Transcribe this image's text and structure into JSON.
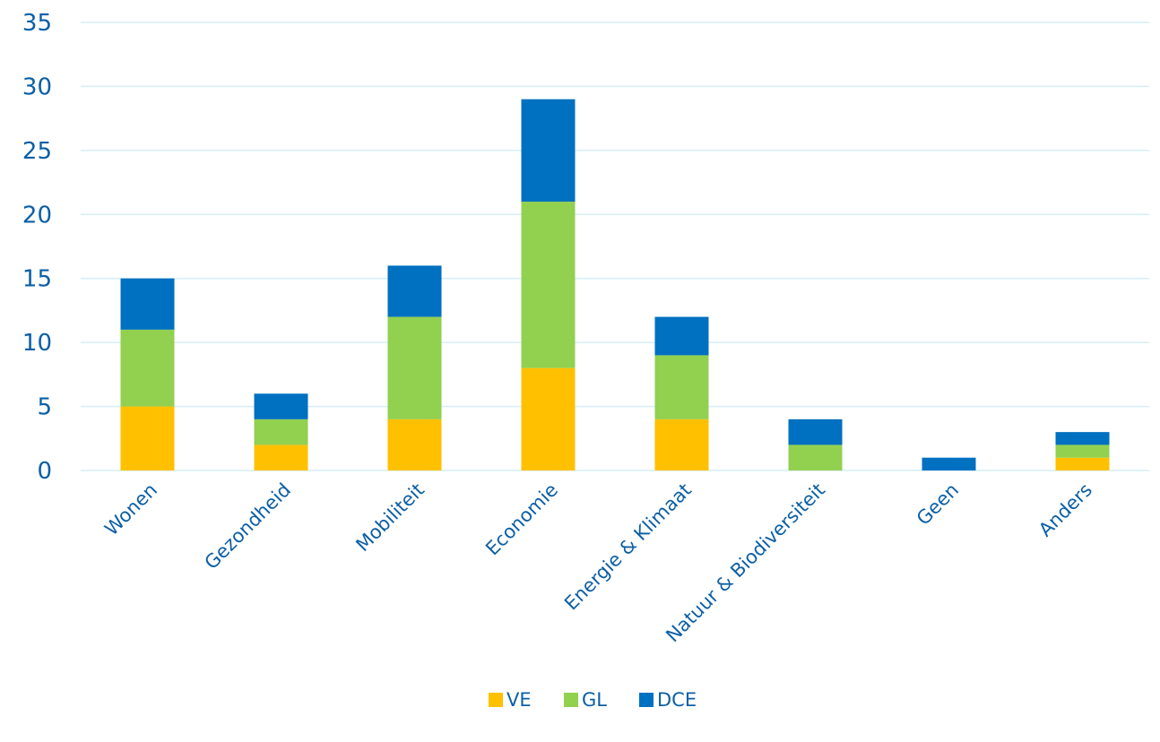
{
  "chart_data": {
    "type": "bar",
    "stacked": true,
    "title": "",
    "xlabel": "",
    "ylabel": "",
    "categories": [
      "Wonen",
      "Gezondheid",
      "Mobiliteit",
      "Economie",
      "Energie & Klimaat",
      "Natuur & Biodiversiteit",
      "Geen",
      "Anders"
    ],
    "series": [
      {
        "name": "VE",
        "color": "#FFC000",
        "values": [
          5,
          2,
          4,
          8,
          4,
          0,
          0,
          1
        ]
      },
      {
        "name": "GL",
        "color": "#92D050",
        "values": [
          6,
          2,
          8,
          13,
          5,
          2,
          0,
          1
        ]
      },
      {
        "name": "DCE",
        "color": "#0070C0",
        "values": [
          4,
          2,
          4,
          8,
          3,
          2,
          1,
          1
        ]
      }
    ],
    "ylim": [
      0,
      35
    ],
    "yticks": [
      0,
      5,
      10,
      15,
      20,
      25,
      30,
      35
    ],
    "grid": true,
    "legend_position": "bottom",
    "text_color": "#0B5FA5",
    "grid_color": "#D6EEF8"
  }
}
